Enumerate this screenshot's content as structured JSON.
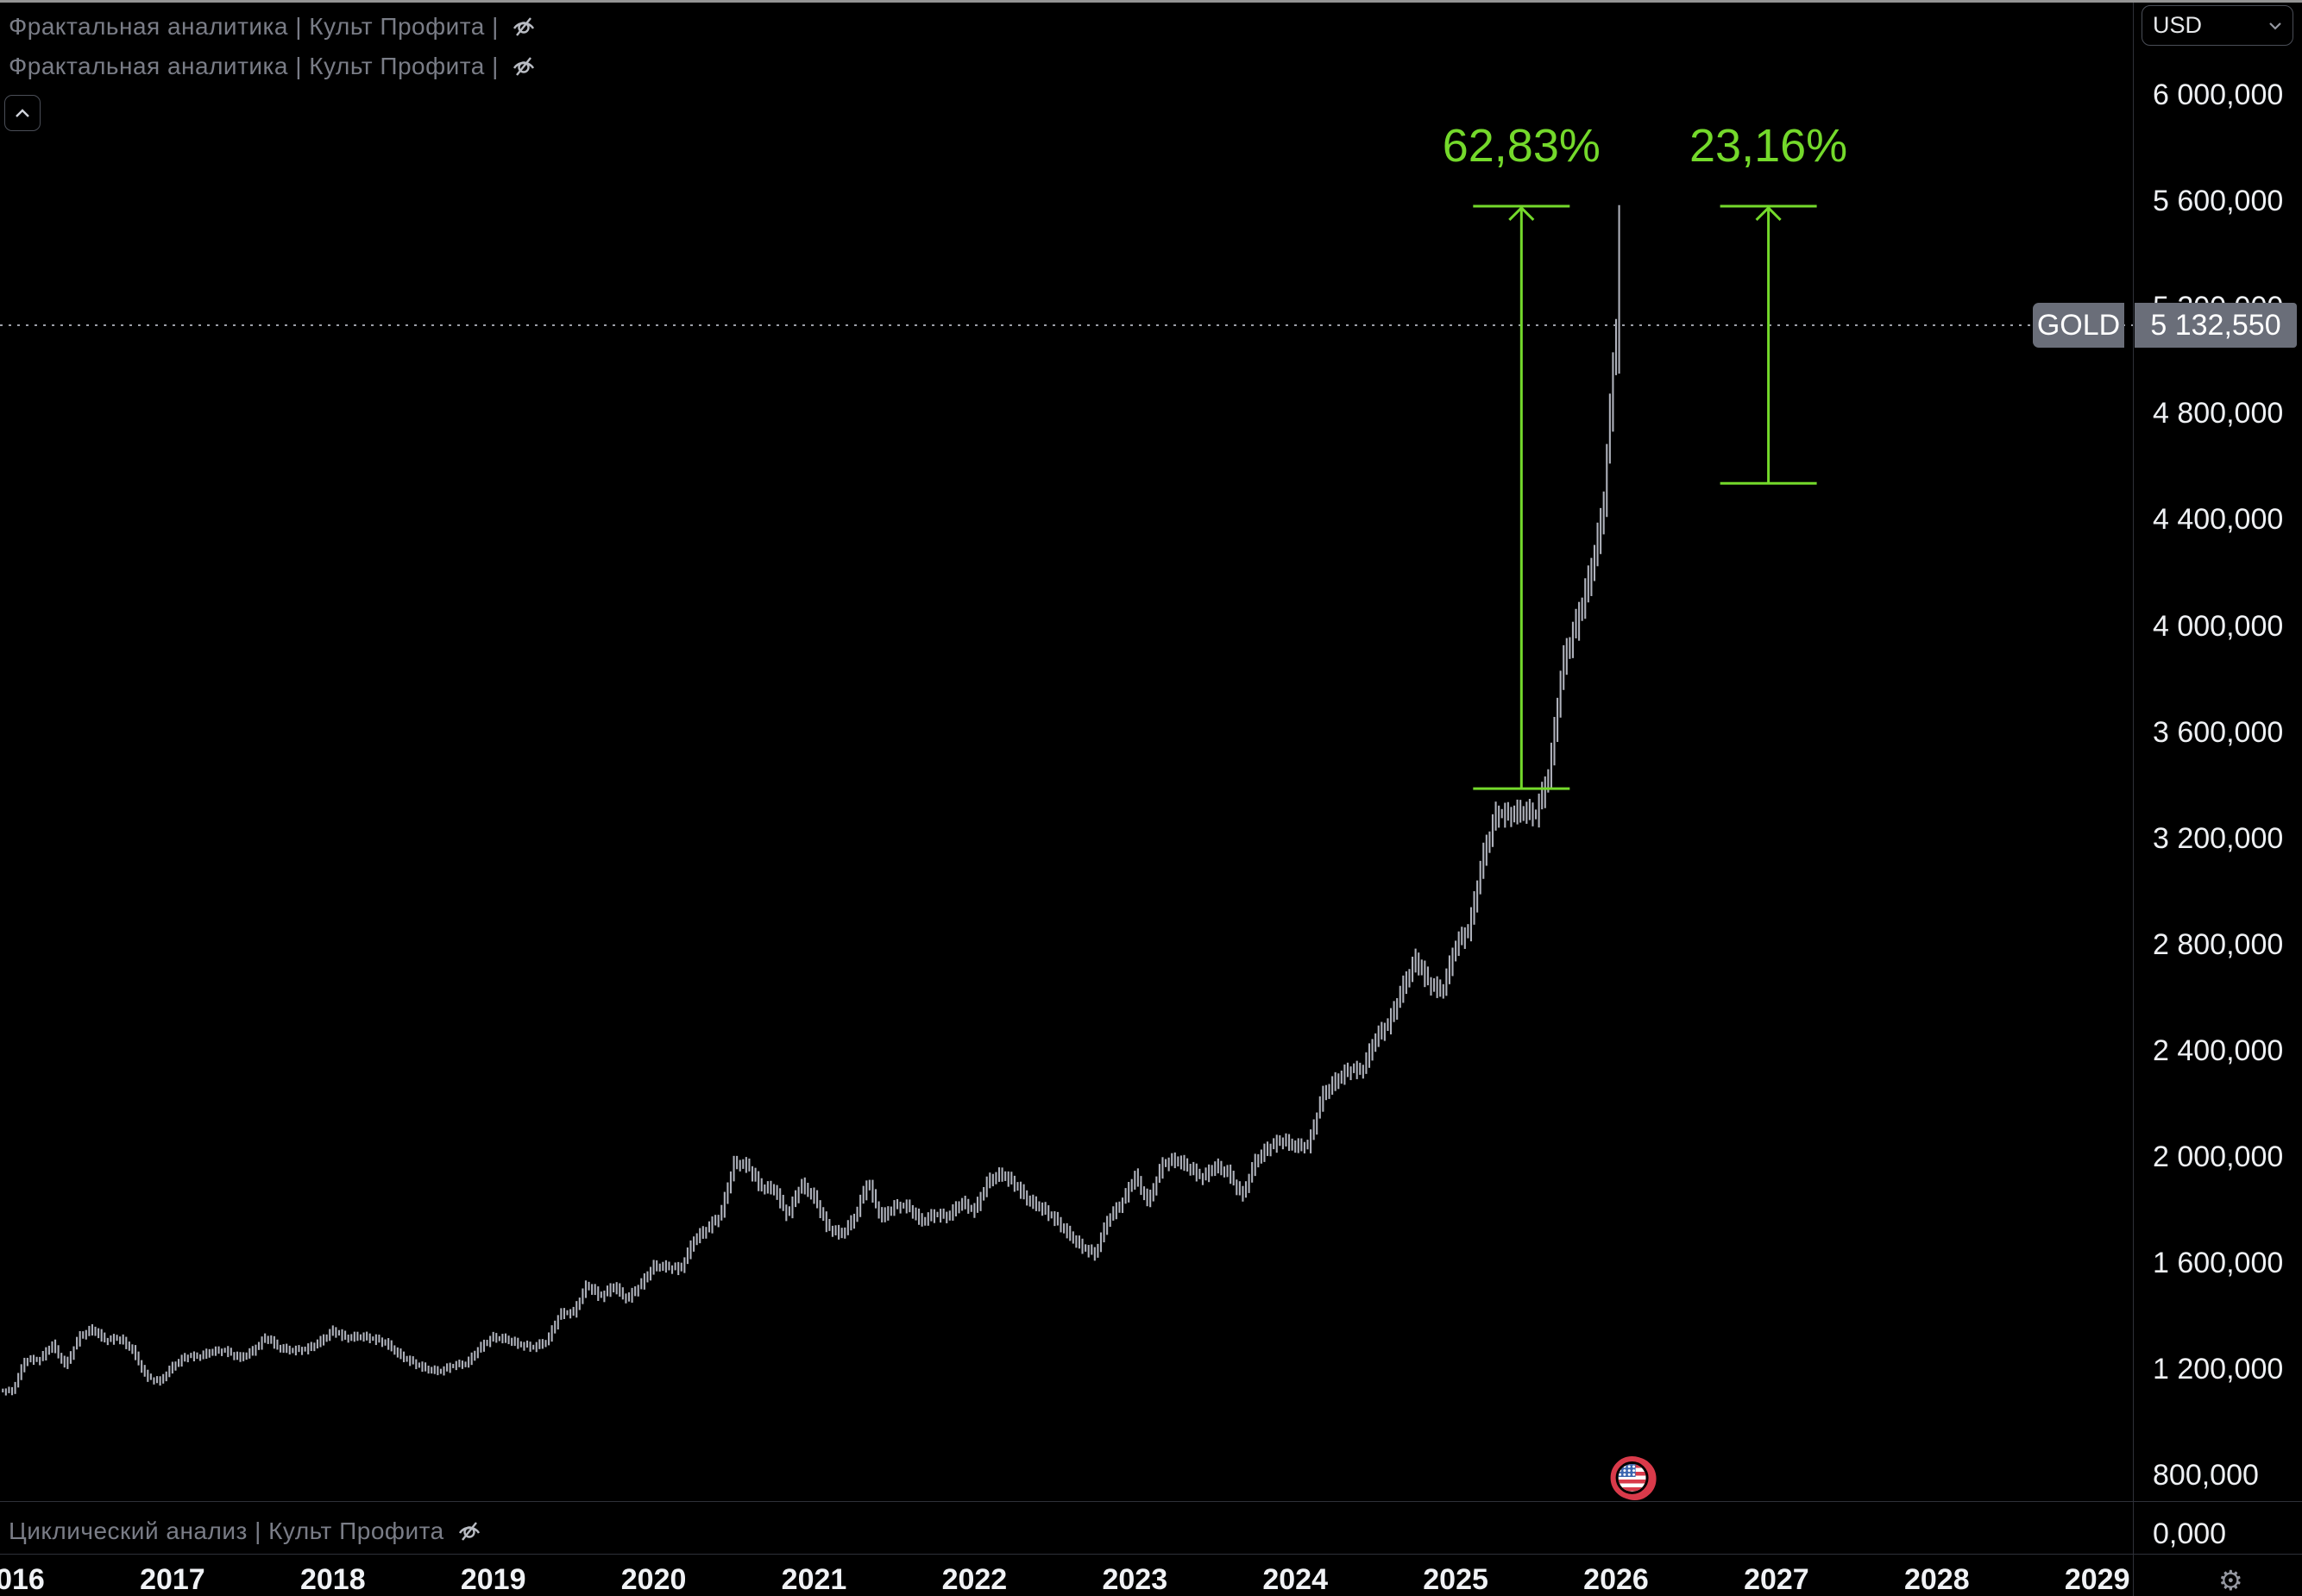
{
  "colors": {
    "background": "#000000",
    "accent_green": "#74d92b",
    "bar_gray": "#aeb1bb",
    "legend_gray": "#7a7d87",
    "axis_text": "#eef0f3",
    "badge_gray": "#6a6e79",
    "separator": "#2e3138",
    "dotted_line": "#9da0a8",
    "flag_red": "#d93a4a",
    "flag_blue": "#3c67b0"
  },
  "header": {
    "indicators": [
      {
        "label": "Фрактальная аналитика | Культ Профита |",
        "eye_icon": "eye-hidden"
      },
      {
        "label": "Фрактальная аналитика | Культ Профита |",
        "eye_icon": "eye-hidden"
      }
    ],
    "collapse_chevron": "chevron-up"
  },
  "lower_pane": {
    "indicator_label": "Циклический анализ | Культ Профита",
    "eye_icon": "eye-hidden",
    "axis_label": "0,000"
  },
  "price_axis": {
    "currency_button": {
      "label": "USD",
      "chevron": "chevron-down"
    },
    "price_badge": {
      "symbol": "GOLD",
      "text": "5 132,550"
    },
    "settings_icon": "gear"
  },
  "chart_data": {
    "type": "bar",
    "symbol": "GOLD",
    "currency": "USD",
    "x_axis": {
      "years": [
        "2016",
        "2017",
        "2018",
        "2019",
        "2020",
        "2021",
        "2022",
        "2023",
        "2024",
        "2025",
        "2026",
        "2027",
        "2028",
        "2029"
      ],
      "bars_end_year": 2026
    },
    "y_axis": {
      "min": 0,
      "max": 6000,
      "tick_step": 400,
      "labels": [
        {
          "text": "6 000,000",
          "value": 6000
        },
        {
          "text": "5 600,000",
          "value": 5600
        },
        {
          "text": "5 200,000",
          "value": 5200
        },
        {
          "text": "4 800,000",
          "value": 4800
        },
        {
          "text": "4 400,000",
          "value": 4400
        },
        {
          "text": "4 000,000",
          "value": 4000
        },
        {
          "text": "3 600,000",
          "value": 3600
        },
        {
          "text": "3 200,000",
          "value": 3200
        },
        {
          "text": "2 800,000",
          "value": 2800
        },
        {
          "text": "2 400,000",
          "value": 2400
        },
        {
          "text": "2 000,000",
          "value": 2000
        },
        {
          "text": "1 600,000",
          "value": 1600
        },
        {
          "text": "1 200,000",
          "value": 1200
        },
        {
          "text": "800,000",
          "value": 800
        }
      ]
    },
    "price_line": {
      "value": 5132.55,
      "label": "5 132,550"
    },
    "series": {
      "name": "GOLD",
      "start": "2016-01",
      "interval": "monthly-closes",
      "closes": [
        1118,
        1238,
        1233,
        1293,
        1212,
        1322,
        1351,
        1309,
        1317,
        1273,
        1173,
        1152,
        1211,
        1248,
        1249,
        1268,
        1269,
        1242,
        1269,
        1321,
        1280,
        1271,
        1275,
        1303,
        1345,
        1318,
        1325,
        1315,
        1298,
        1253,
        1224,
        1201,
        1192,
        1215,
        1222,
        1282,
        1321,
        1313,
        1292,
        1283,
        1306,
        1410,
        1414,
        1520,
        1472,
        1513,
        1464,
        1517,
        1589,
        1586,
        1577,
        1687,
        1730,
        1781,
        1976,
        1968,
        1886,
        1879,
        1777,
        1898,
        1848,
        1734,
        1708,
        1768,
        1907,
        1770,
        1814,
        1814,
        1757,
        1783,
        1775,
        1829,
        1797,
        1909,
        1937,
        1897,
        1837,
        1807,
        1766,
        1711,
        1661,
        1633,
        1769,
        1824,
        1928,
        1827,
        1969,
        1990,
        1963,
        1919,
        1965,
        1940,
        1849,
        1984,
        2036,
        2063,
        2040,
        2044,
        2230,
        2286,
        2327,
        2327,
        2448,
        2503,
        2635,
        2744,
        2651,
        2625,
        2798,
        2858,
        3124,
        3289,
        3289,
        3303,
        3290,
        3448,
        3859,
        4004,
        4180,
        4420,
        5132.55
      ]
    },
    "final_bar": {
      "high": 5585,
      "low": 4950,
      "close": 5132.55
    },
    "measurements": [
      {
        "label": "62,83%",
        "percent": 62.83,
        "x_year": 2025.41,
        "from_price": 3387,
        "to_price": 5581
      },
      {
        "label": "23,16%",
        "percent": 23.16,
        "x_year": 2026.95,
        "from_price": 4537,
        "to_price": 5581
      }
    ],
    "event_flag": {
      "x_year": 2026.1,
      "country": "US"
    }
  }
}
